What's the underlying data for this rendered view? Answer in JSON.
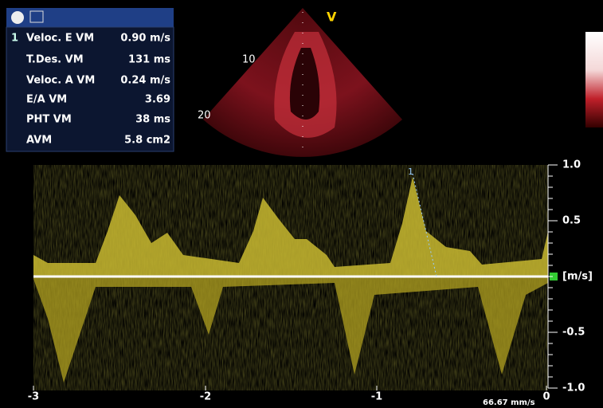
{
  "measurements": {
    "index": "1",
    "rows": [
      [
        "Veloc. E  VM",
        "0.90 m/s"
      ],
      [
        "T.Des. VM",
        "131 ms"
      ],
      [
        "Veloc. A  VM",
        "0.24 m/s"
      ],
      [
        "E/A VM",
        "3.69"
      ],
      [
        "PHT VM",
        "38 ms"
      ],
      [
        "AVM",
        "5.8 cm2"
      ]
    ]
  },
  "image_labels": {
    "view": "V",
    "depth_10": "10",
    "depth_20": "20"
  },
  "doppler": {
    "y_ticks": [
      "1.0",
      "0.5",
      "[m/s]",
      "-0.5",
      "-1.0"
    ],
    "x_ticks": [
      "-3",
      "-2",
      "-1",
      "0"
    ],
    "cursor_label": "1",
    "sweep_speed": "66.67 mm/s"
  }
}
